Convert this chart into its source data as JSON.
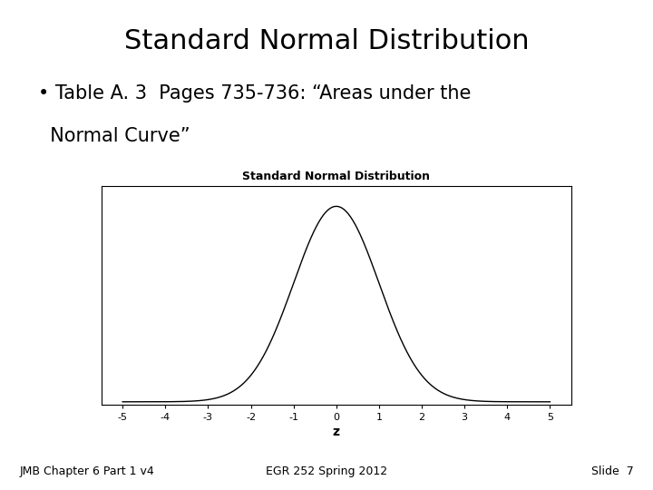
{
  "slide_title": "Standard Normal Distribution",
  "bullet_line1": "• Table A. 3  Pages 735-736: “Areas under the",
  "bullet_line2": "  Normal Curve”",
  "chart_title": "Standard Normal Distribution",
  "xlabel": "z",
  "footer_left": "JMB Chapter 6 Part 1 v4",
  "footer_center": "EGR 252 Spring 2012",
  "footer_right": "Slide  7",
  "x_ticks": [
    -5,
    -4,
    -3,
    -2,
    -1,
    0,
    1,
    2,
    3,
    4,
    5
  ],
  "xlim": [
    -5.5,
    5.5
  ],
  "background_color": "#ffffff",
  "curve_color": "#000000",
  "slide_title_fontsize": 22,
  "bullet_fontsize": 15,
  "chart_title_fontsize": 9,
  "xlabel_fontsize": 10,
  "tick_fontsize": 8,
  "footer_fontsize": 9
}
